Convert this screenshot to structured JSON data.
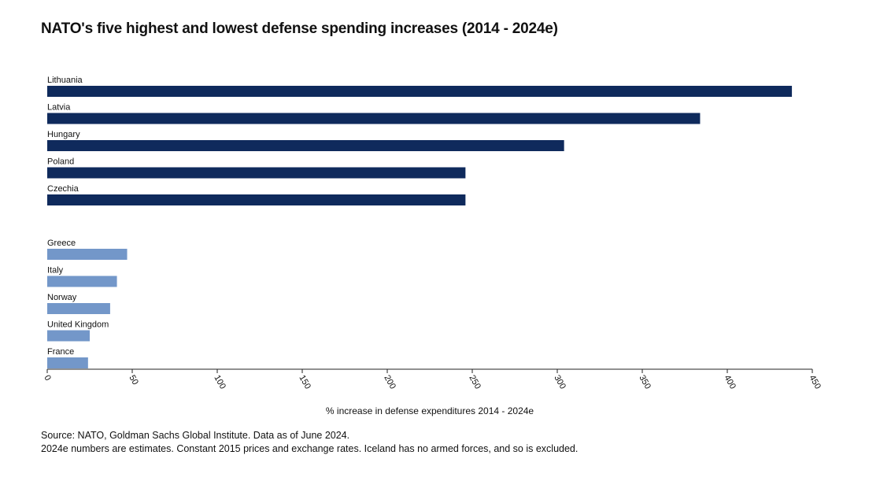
{
  "title": "NATO's five highest and lowest defense spending increases (2014 - 2024e)",
  "source_line1": "Source: NATO, Goldman Sachs Global Institute. Data as of June 2024.",
  "source_line2": "2024e numbers are estimates. Constant 2015 prices and exchange rates. Iceland has no armed forces, and so is excluded.",
  "chart_data": {
    "type": "bar",
    "orientation": "horizontal",
    "xlabel": "% increase in defense expenditures 2014 - 2024e",
    "xlim": [
      0,
      450
    ],
    "xticks": [
      0,
      50,
      100,
      150,
      200,
      250,
      300,
      350,
      400,
      450
    ],
    "grid": false,
    "colors": {
      "highest": "#0f2a5c",
      "lowest": "#7397c9"
    },
    "groups": [
      {
        "group": "highest",
        "categories": [
          "Lithuania",
          "Latvia",
          "Hungary",
          "Poland",
          "Czechia"
        ],
        "values": [
          438,
          384,
          304,
          246,
          246
        ]
      },
      {
        "group": "lowest",
        "categories": [
          "Greece",
          "Italy",
          "Norway",
          "United Kingdom",
          "France"
        ],
        "values": [
          47,
          41,
          37,
          25,
          24
        ]
      }
    ]
  }
}
